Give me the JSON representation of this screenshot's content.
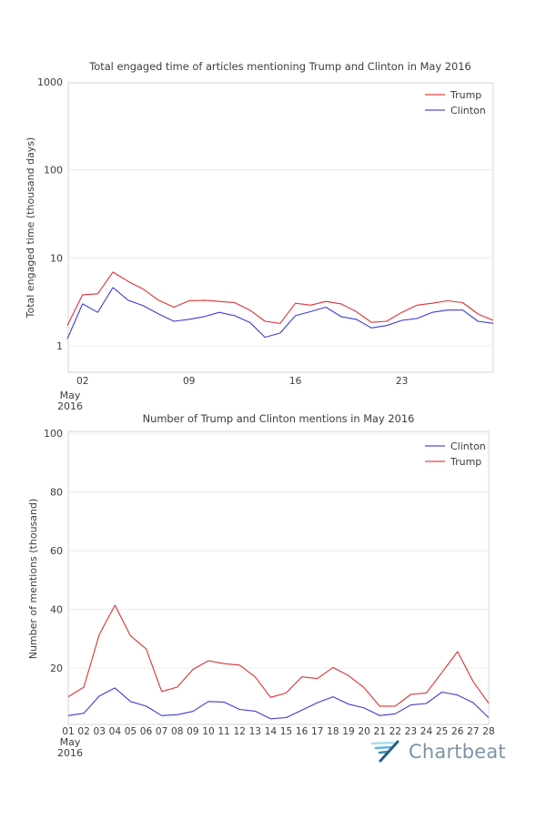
{
  "branding": {
    "logo_text": "Chartbeat"
  },
  "colors": {
    "trump": "#e03131",
    "clinton": "#3b3bd6",
    "grid": "#ececec",
    "plot_border": "#d6d6d6",
    "text": "#3d3d3d",
    "logo_text": "#7e93a5",
    "logo_icon": [
      "#a8dcec",
      "#5fb6d8",
      "#3c8fb8",
      "#265e86"
    ]
  },
  "chart_data": [
    {
      "type": "line",
      "title": "Total engaged time of articles mentioning Trump and Clinton in May 2016",
      "ylabel": "Total engaged time (thousand days)",
      "yscale": "log",
      "ylim": [
        0.5,
        1000
      ],
      "ytick_values": [
        1000,
        100,
        10,
        1
      ],
      "ytick_labels": [
        "1000",
        "100",
        "10",
        "1"
      ],
      "xtick_values": [
        2,
        9,
        16,
        23
      ],
      "xtick_labels": [
        "02",
        "09",
        "16",
        "23"
      ],
      "x_corner_label": [
        "May",
        "2016"
      ],
      "grid": "horizontal",
      "legend_position": "top-right",
      "x": [
        1,
        2,
        3,
        4,
        5,
        6,
        7,
        8,
        9,
        10,
        11,
        12,
        13,
        14,
        15,
        16,
        17,
        18,
        19,
        20,
        21,
        22,
        23,
        24,
        25,
        26,
        27,
        28,
        29
      ],
      "series": [
        {
          "name": "Trump",
          "color": "#e03131",
          "values": [
            1.7,
            3.8,
            3.9,
            6.9,
            5.4,
            4.4,
            3.3,
            2.75,
            3.25,
            3.3,
            3.2,
            3.1,
            2.55,
            1.9,
            1.8,
            3.05,
            2.9,
            3.2,
            3.0,
            2.45,
            1.85,
            1.9,
            2.4,
            2.9,
            3.05,
            3.25,
            3.1,
            2.3,
            1.95
          ]
        },
        {
          "name": "Clinton",
          "color": "#3b3bd6",
          "values": [
            1.2,
            3.0,
            2.4,
            4.6,
            3.3,
            2.85,
            2.3,
            1.9,
            2.0,
            2.15,
            2.4,
            2.2,
            1.85,
            1.25,
            1.4,
            2.2,
            2.45,
            2.75,
            2.15,
            2.0,
            1.6,
            1.7,
            1.95,
            2.05,
            2.4,
            2.55,
            2.55,
            1.9,
            1.8
          ]
        }
      ]
    },
    {
      "type": "line",
      "title": "Number of Trump and Clinton mentions in May 2016",
      "ylabel": "Number of mentions (thousand)",
      "yscale": "linear",
      "ylim": [
        0,
        100
      ],
      "ytick_values": [
        100,
        80,
        60,
        40,
        20
      ],
      "ytick_labels": [
        "100",
        "80",
        "60",
        "40",
        "20"
      ],
      "xtick_values": [
        1,
        2,
        3,
        4,
        5,
        6,
        7,
        8,
        9,
        10,
        11,
        12,
        13,
        14,
        15,
        16,
        17,
        18,
        19,
        20,
        21,
        22,
        23,
        24,
        25,
        26,
        27,
        28
      ],
      "xtick_labels": [
        "01",
        "02",
        "03",
        "04",
        "05",
        "06",
        "07",
        "08",
        "09",
        "10",
        "11",
        "12",
        "13",
        "14",
        "15",
        "16",
        "17",
        "18",
        "19",
        "20",
        "21",
        "22",
        "23",
        "24",
        "25",
        "26",
        "27",
        "28"
      ],
      "x_corner_label": [
        "May",
        "2016"
      ],
      "grid": "horizontal",
      "legend_position": "top-right",
      "x": [
        1,
        2,
        3,
        4,
        5,
        6,
        7,
        8,
        9,
        10,
        11,
        12,
        13,
        14,
        15,
        16,
        17,
        18,
        19,
        20,
        21,
        22,
        23,
        24,
        25,
        26,
        27,
        28
      ],
      "series": [
        {
          "name": "Clinton",
          "color": "#3b3bd6",
          "values": [
            3.8,
            4.6,
            10.5,
            13.2,
            8.6,
            7.0,
            3.8,
            4.1,
            5.2,
            8.6,
            8.4,
            5.9,
            5.3,
            2.7,
            3.1,
            5.6,
            8.2,
            10.2,
            7.7,
            6.4,
            3.8,
            4.4,
            7.4,
            7.9,
            11.8,
            10.8,
            8.2,
            3.1
          ]
        },
        {
          "name": "Trump",
          "color": "#e03131",
          "values": [
            10.2,
            13.5,
            31.5,
            41.4,
            31.0,
            26.5,
            12.0,
            13.5,
            19.5,
            22.5,
            21.5,
            21.0,
            17.0,
            10.0,
            11.5,
            17.0,
            16.4,
            20.2,
            17.4,
            13.3,
            7.0,
            7.0,
            11.0,
            11.5,
            18.5,
            25.6,
            15.4,
            8.0
          ]
        }
      ]
    }
  ]
}
